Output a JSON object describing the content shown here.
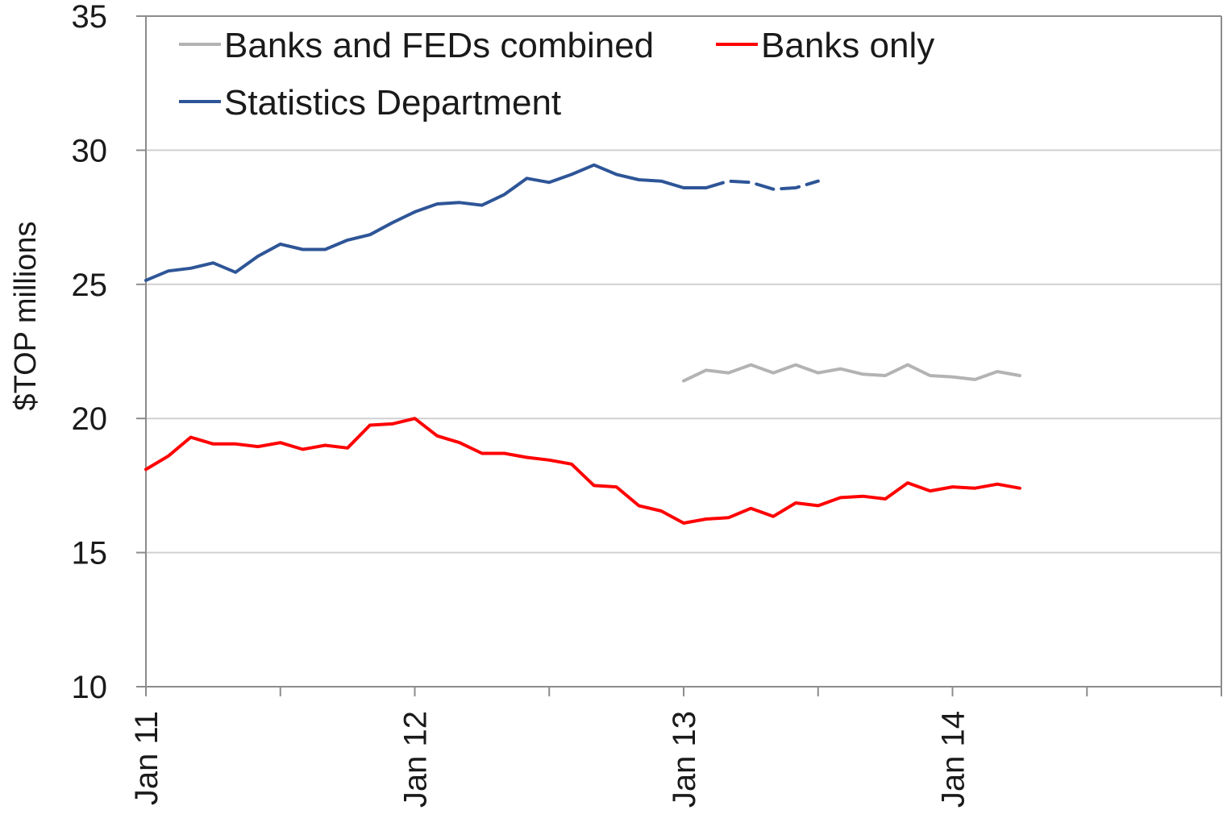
{
  "chart_data": {
    "type": "line",
    "title": "",
    "xlabel": "",
    "ylabel": "$TOP millions",
    "ylim": [
      10,
      35
    ],
    "yticks": [
      10,
      15,
      20,
      25,
      30,
      35
    ],
    "xlim": [
      "2011-01",
      "2015-01"
    ],
    "x_ticks": [
      {
        "x": "2011-01",
        "label": "Jan 11"
      },
      {
        "x": "2012-01",
        "label": "Jan 12"
      },
      {
        "x": "2013-01",
        "label": "Jan 13"
      },
      {
        "x": "2014-01",
        "label": "Jan 14"
      }
    ],
    "grid": "horizontal",
    "legend_placement": "top-left",
    "series": [
      {
        "name": "Banks and FEDs combined",
        "color": "#b3b3b3",
        "points": [
          [
            "2013-01",
            21.4
          ],
          [
            "2013-02",
            21.8
          ],
          [
            "2013-03",
            21.7
          ],
          [
            "2013-04",
            22.0
          ],
          [
            "2013-05",
            21.7
          ],
          [
            "2013-06",
            22.0
          ],
          [
            "2013-07",
            21.7
          ],
          [
            "2013-08",
            21.85
          ],
          [
            "2013-09",
            21.65
          ],
          [
            "2013-10",
            21.6
          ],
          [
            "2013-11",
            22.0
          ],
          [
            "2013-12",
            21.6
          ],
          [
            "2014-01",
            21.55
          ],
          [
            "2014-02",
            21.45
          ],
          [
            "2014-03",
            21.75
          ],
          [
            "2014-04",
            21.6
          ]
        ]
      },
      {
        "name": "Banks only",
        "color": "#ff0000",
        "points": [
          [
            "2011-01",
            18.1
          ],
          [
            "2011-02",
            18.6
          ],
          [
            "2011-03",
            19.3
          ],
          [
            "2011-04",
            19.05
          ],
          [
            "2011-05",
            19.05
          ],
          [
            "2011-06",
            18.95
          ],
          [
            "2011-07",
            19.1
          ],
          [
            "2011-08",
            18.85
          ],
          [
            "2011-09",
            19.0
          ],
          [
            "2011-10",
            18.9
          ],
          [
            "2011-11",
            19.75
          ],
          [
            "2011-12",
            19.8
          ],
          [
            "2012-01",
            20.0
          ],
          [
            "2012-02",
            19.35
          ],
          [
            "2012-03",
            19.1
          ],
          [
            "2012-04",
            18.7
          ],
          [
            "2012-05",
            18.7
          ],
          [
            "2012-06",
            18.55
          ],
          [
            "2012-07",
            18.45
          ],
          [
            "2012-08",
            18.3
          ],
          [
            "2012-09",
            17.5
          ],
          [
            "2012-10",
            17.45
          ],
          [
            "2012-11",
            16.75
          ],
          [
            "2012-12",
            16.55
          ],
          [
            "2013-01",
            16.1
          ],
          [
            "2013-02",
            16.25
          ],
          [
            "2013-03",
            16.3
          ],
          [
            "2013-04",
            16.65
          ],
          [
            "2013-05",
            16.35
          ],
          [
            "2013-06",
            16.85
          ],
          [
            "2013-07",
            16.75
          ],
          [
            "2013-08",
            17.05
          ],
          [
            "2013-09",
            17.1
          ],
          [
            "2013-10",
            17.0
          ],
          [
            "2013-11",
            17.6
          ],
          [
            "2013-12",
            17.3
          ],
          [
            "2014-01",
            17.45
          ],
          [
            "2014-02",
            17.4
          ],
          [
            "2014-03",
            17.55
          ],
          [
            "2014-04",
            17.4
          ]
        ]
      },
      {
        "name": "Statistics Department",
        "color": "#2e5597",
        "points": [
          [
            "2011-01",
            25.15
          ],
          [
            "2011-02",
            25.5
          ],
          [
            "2011-03",
            25.6
          ],
          [
            "2011-04",
            25.8
          ],
          [
            "2011-05",
            25.45
          ],
          [
            "2011-06",
            26.05
          ],
          [
            "2011-07",
            26.5
          ],
          [
            "2011-08",
            26.3
          ],
          [
            "2011-09",
            26.3
          ],
          [
            "2011-10",
            26.65
          ],
          [
            "2011-11",
            26.85
          ],
          [
            "2011-12",
            27.3
          ],
          [
            "2012-01",
            27.7
          ],
          [
            "2012-02",
            28.0
          ],
          [
            "2012-03",
            28.05
          ],
          [
            "2012-04",
            27.95
          ],
          [
            "2012-05",
            28.35
          ],
          [
            "2012-06",
            28.95
          ],
          [
            "2012-07",
            28.8
          ],
          [
            "2012-08",
            29.1
          ],
          [
            "2012-09",
            29.45
          ],
          [
            "2012-10",
            29.1
          ],
          [
            "2012-11",
            28.9
          ],
          [
            "2012-12",
            28.85
          ],
          [
            "2013-01",
            28.6
          ],
          [
            "2013-02",
            28.6
          ]
        ]
      },
      {
        "name": "Statistics Department (dashed)",
        "color": "#2e5597",
        "dashed": true,
        "points": [
          [
            "2013-02",
            28.6
          ],
          [
            "2013-03",
            28.85
          ],
          [
            "2013-04",
            28.8
          ],
          [
            "2013-05",
            28.55
          ],
          [
            "2013-06",
            28.6
          ],
          [
            "2013-07",
            28.85
          ]
        ]
      }
    ]
  }
}
